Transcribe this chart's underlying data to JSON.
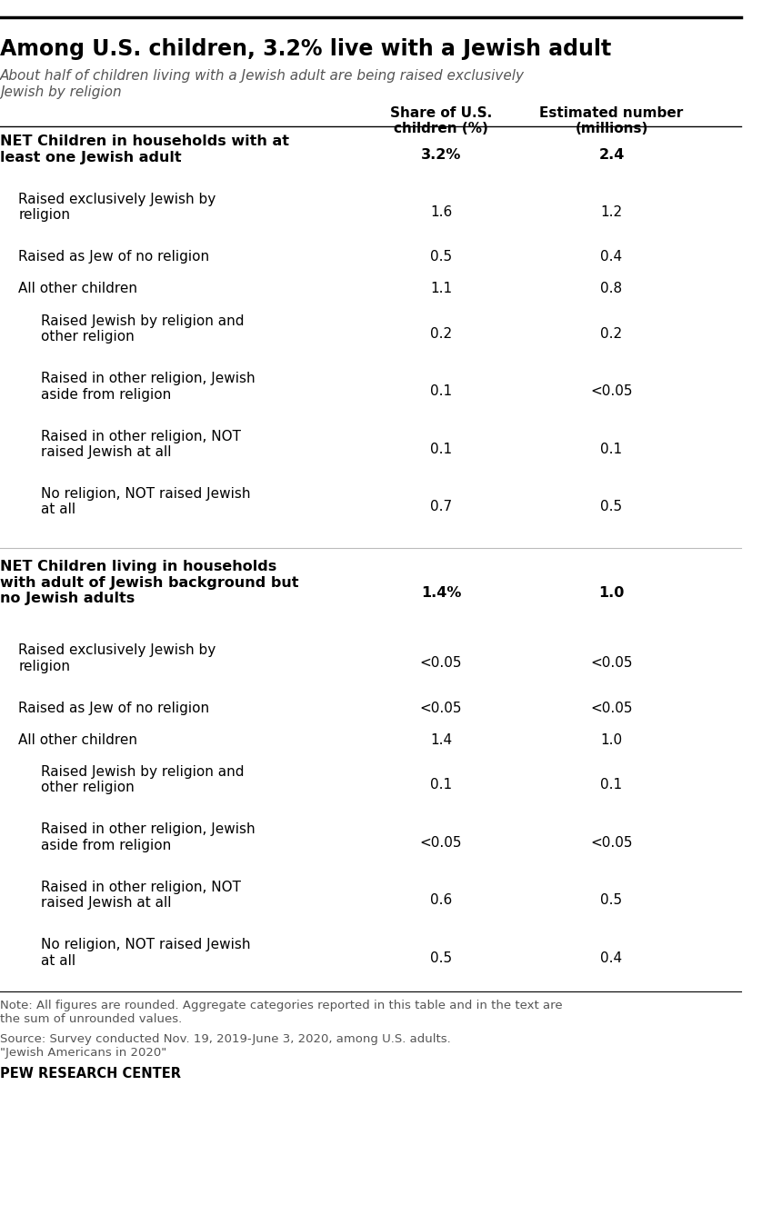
{
  "title": "Among U.S. children, 3.2% live with a Jewish adult",
  "subtitle": "About half of children living with a Jewish adult are being raised exclusively\nJewish by religion",
  "col1_header": "Share of U.S.\nchildren (%)",
  "col2_header": "Estimated number\n(millions)",
  "rows": [
    {
      "label": "NET Children in households with at\nleast one Jewish adult",
      "col1": "3.2%",
      "col2": "2.4",
      "bold": true,
      "indent": 0,
      "separator_above": false,
      "extra_space_above": false
    },
    {
      "label": "Raised exclusively Jewish by\nreligion",
      "col1": "1.6",
      "col2": "1.2",
      "bold": false,
      "indent": 1,
      "separator_above": false,
      "extra_space_above": false
    },
    {
      "label": "Raised as Jew of no religion",
      "col1": "0.5",
      "col2": "0.4",
      "bold": false,
      "indent": 1,
      "separator_above": false,
      "extra_space_above": false
    },
    {
      "label": "All other children",
      "col1": "1.1",
      "col2": "0.8",
      "bold": false,
      "indent": 1,
      "separator_above": false,
      "extra_space_above": false
    },
    {
      "label": "Raised Jewish by religion and\nother religion",
      "col1": "0.2",
      "col2": "0.2",
      "bold": false,
      "indent": 2,
      "separator_above": false,
      "extra_space_above": false
    },
    {
      "label": "Raised in other religion, Jewish\naside from religion",
      "col1": "0.1",
      "col2": "<0.05",
      "bold": false,
      "indent": 2,
      "separator_above": false,
      "extra_space_above": false
    },
    {
      "label": "Raised in other religion, NOT\nraised Jewish at all",
      "col1": "0.1",
      "col2": "0.1",
      "bold": false,
      "indent": 2,
      "separator_above": false,
      "extra_space_above": false
    },
    {
      "label": "No religion, NOT raised Jewish\nat all",
      "col1": "0.7",
      "col2": "0.5",
      "bold": false,
      "indent": 2,
      "separator_above": false,
      "extra_space_above": false
    },
    {
      "label": "NET Children living in households\nwith adult of Jewish background but\nno Jewish adults",
      "col1": "1.4%",
      "col2": "1.0",
      "bold": true,
      "indent": 0,
      "separator_above": true,
      "extra_space_above": true
    },
    {
      "label": "Raised exclusively Jewish by\nreligion",
      "col1": "<0.05",
      "col2": "<0.05",
      "bold": false,
      "indent": 1,
      "separator_above": false,
      "extra_space_above": false
    },
    {
      "label": "Raised as Jew of no religion",
      "col1": "<0.05",
      "col2": "<0.05",
      "bold": false,
      "indent": 1,
      "separator_above": false,
      "extra_space_above": false
    },
    {
      "label": "All other children",
      "col1": "1.4",
      "col2": "1.0",
      "bold": false,
      "indent": 1,
      "separator_above": false,
      "extra_space_above": false
    },
    {
      "label": "Raised Jewish by religion and\nother religion",
      "col1": "0.1",
      "col2": "0.1",
      "bold": false,
      "indent": 2,
      "separator_above": false,
      "extra_space_above": false
    },
    {
      "label": "Raised in other religion, Jewish\naside from religion",
      "col1": "<0.05",
      "col2": "<0.05",
      "bold": false,
      "indent": 2,
      "separator_above": false,
      "extra_space_above": false
    },
    {
      "label": "Raised in other religion, NOT\nraised Jewish at all",
      "col1": "0.6",
      "col2": "0.5",
      "bold": false,
      "indent": 2,
      "separator_above": false,
      "extra_space_above": false
    },
    {
      "label": "No religion, NOT raised Jewish\nat all",
      "col1": "0.5",
      "col2": "0.4",
      "bold": false,
      "indent": 2,
      "separator_above": false,
      "extra_space_above": false
    }
  ],
  "note": "Note: All figures are rounded. Aggregate categories reported in this table and in the text are\nthe sum of unrounded values.",
  "source": "Source: Survey conducted Nov. 19, 2019-June 3, 2020, among U.S. adults.\n\"Jewish Americans in 2020\"",
  "branding": "PEW RESEARCH CENTER",
  "bg_color": "#ffffff",
  "title_color": "#000000",
  "subtitle_color": "#555555",
  "text_color": "#000000",
  "note_color": "#555555",
  "top_line_color": "#000000",
  "header_line_color": "#000000"
}
